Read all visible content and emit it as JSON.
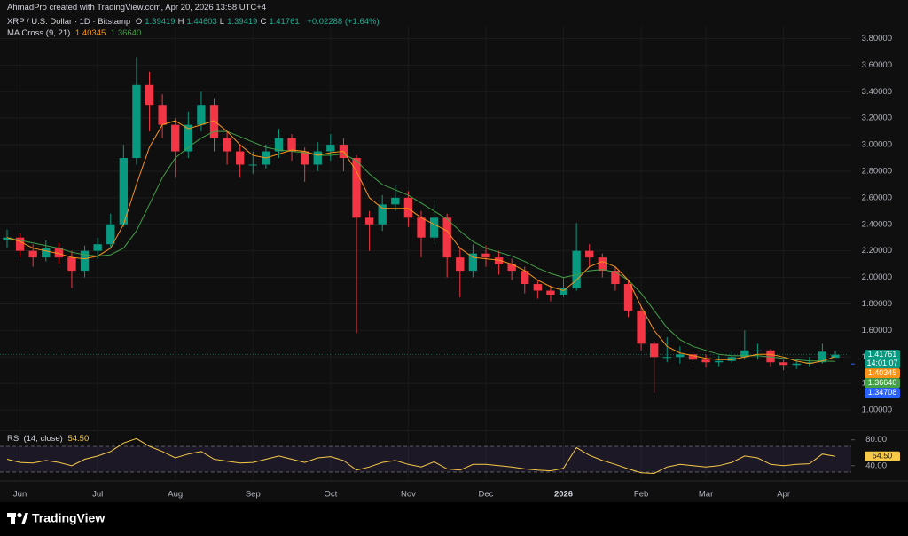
{
  "header": {
    "attribution": "AhmadPro created with TradingView.com, Apr 20, 2026 13:58 UTC+4"
  },
  "footer": {
    "logo": "TradingView"
  },
  "chart_data": {
    "type": "candlestick",
    "title": "XRP / U.S. Dollar · 1D · Bitstamp",
    "ohlc_legend": [
      {
        "label": "O",
        "value": "1.39419"
      },
      {
        "label": "H",
        "value": "1.44603"
      },
      {
        "label": "L",
        "value": "1.39419"
      },
      {
        "label": "C",
        "value": "1.41761"
      }
    ],
    "change": "+0.02288 (+1.64%)",
    "up_color": "#089981",
    "down_color": "#f23645",
    "categories": [
      null,
      "Jun",
      null,
      null,
      null,
      null,
      null,
      "Jul",
      null,
      null,
      null,
      null,
      null,
      "Aug",
      null,
      null,
      null,
      null,
      null,
      "Sep",
      null,
      null,
      null,
      null,
      null,
      "Oct",
      null,
      null,
      null,
      null,
      null,
      "Nov",
      null,
      null,
      null,
      null,
      null,
      "Dec",
      null,
      null,
      null,
      null,
      null,
      "2026",
      null,
      null,
      null,
      null,
      null,
      "Feb",
      null,
      null,
      null,
      null,
      "Mar",
      null,
      null,
      null,
      null,
      null,
      "Apr",
      null,
      null,
      null,
      null
    ],
    "open": [
      2.28,
      2.3,
      2.2,
      2.15,
      2.22,
      2.15,
      2.05,
      2.2,
      2.25,
      2.4,
      2.9,
      3.45,
      3.3,
      3.15,
      2.95,
      3.15,
      3.3,
      3.05,
      2.95,
      2.85,
      2.85,
      2.95,
      3.05,
      2.95,
      2.85,
      2.95,
      3.0,
      2.9,
      2.45,
      2.4,
      2.55,
      2.6,
      2.45,
      2.3,
      2.45,
      2.15,
      2.05,
      2.18,
      2.15,
      2.1,
      2.05,
      1.95,
      1.9,
      1.87,
      1.92,
      2.2,
      2.15,
      2.05,
      1.95,
      1.75,
      1.5,
      1.4,
      1.4,
      1.42,
      1.38,
      1.36,
      1.37,
      1.4,
      1.45,
      1.45,
      1.36,
      1.34,
      1.35,
      1.36,
      1.39419
    ],
    "high": [
      2.36,
      2.33,
      2.25,
      2.28,
      2.26,
      2.2,
      2.24,
      2.3,
      2.48,
      3.0,
      3.66,
      3.55,
      3.38,
      3.2,
      3.25,
      3.4,
      3.35,
      3.1,
      3.0,
      2.95,
      3.0,
      3.12,
      3.08,
      2.98,
      3.02,
      3.08,
      3.05,
      2.92,
      2.5,
      2.62,
      2.7,
      2.65,
      2.5,
      2.58,
      2.48,
      2.22,
      2.25,
      2.24,
      2.2,
      2.14,
      2.08,
      1.98,
      1.94,
      2.0,
      2.41,
      2.25,
      2.18,
      2.08,
      1.98,
      1.78,
      1.52,
      1.55,
      1.48,
      1.45,
      1.42,
      1.41,
      1.44,
      1.6,
      1.5,
      1.46,
      1.38,
      1.38,
      1.4,
      1.5,
      1.44603
    ],
    "low": [
      2.22,
      2.15,
      2.08,
      2.12,
      2.1,
      1.92,
      2.0,
      2.14,
      2.22,
      2.38,
      2.85,
      3.1,
      3.05,
      2.75,
      2.9,
      3.1,
      2.95,
      2.85,
      2.75,
      2.78,
      2.82,
      2.9,
      2.88,
      2.72,
      2.8,
      2.88,
      2.8,
      1.58,
      2.2,
      2.35,
      2.5,
      2.38,
      2.15,
      2.25,
      2.0,
      1.85,
      2.0,
      2.08,
      2.02,
      1.98,
      1.88,
      1.84,
      1.82,
      1.85,
      1.9,
      2.08,
      2.0,
      1.9,
      1.7,
      1.45,
      1.13,
      1.36,
      1.35,
      1.32,
      1.32,
      1.33,
      1.35,
      1.38,
      1.38,
      1.33,
      1.3,
      1.31,
      1.33,
      1.35,
      1.39419
    ],
    "close": [
      2.3,
      2.2,
      2.15,
      2.22,
      2.15,
      2.05,
      2.2,
      2.25,
      2.4,
      2.9,
      3.45,
      3.3,
      3.15,
      2.95,
      3.15,
      3.3,
      3.05,
      2.95,
      2.85,
      2.85,
      2.95,
      3.05,
      2.95,
      2.85,
      2.95,
      3.0,
      2.9,
      2.45,
      2.4,
      2.55,
      2.6,
      2.45,
      2.3,
      2.45,
      2.15,
      2.05,
      2.18,
      2.15,
      2.1,
      2.05,
      1.95,
      1.9,
      1.87,
      1.92,
      2.2,
      2.15,
      2.05,
      1.95,
      1.75,
      1.5,
      1.4,
      1.4,
      1.42,
      1.38,
      1.36,
      1.37,
      1.4,
      1.45,
      1.45,
      1.36,
      1.34,
      1.35,
      1.36,
      1.44,
      1.41761
    ],
    "ylim": [
      0.86,
      3.89
    ],
    "yticks": [
      {
        "value": 1.0,
        "label": "1.00000"
      },
      {
        "value": 1.2,
        "label": "1.20000"
      },
      {
        "value": 1.4,
        "label": "1.40000"
      },
      {
        "value": 1.6,
        "label": "1.60000"
      },
      {
        "value": 1.8,
        "label": "1.80000"
      },
      {
        "value": 2.0,
        "label": "2.00000"
      },
      {
        "value": 2.2,
        "label": "2.20000"
      },
      {
        "value": 2.4,
        "label": "2.40000"
      },
      {
        "value": 2.6,
        "label": "2.60000"
      },
      {
        "value": 2.8,
        "label": "2.80000"
      },
      {
        "value": 3.0,
        "label": "3.00000"
      },
      {
        "value": 3.2,
        "label": "3.20000"
      },
      {
        "value": 3.4,
        "label": "3.40000"
      },
      {
        "value": 3.6,
        "label": "3.60000"
      },
      {
        "value": 3.8,
        "label": "3.80000"
      }
    ],
    "indicator": {
      "title": "MA Cross (9, 21)",
      "fast": {
        "color": "#f7931a",
        "value_label": "1.40345",
        "values": [
          2.3,
          2.27,
          2.22,
          2.2,
          2.18,
          2.15,
          2.14,
          2.16,
          2.22,
          2.4,
          2.7,
          2.98,
          3.15,
          3.18,
          3.12,
          3.15,
          3.18,
          3.1,
          3.0,
          2.92,
          2.9,
          2.93,
          2.96,
          2.95,
          2.92,
          2.94,
          2.95,
          2.8,
          2.6,
          2.52,
          2.52,
          2.52,
          2.45,
          2.4,
          2.35,
          2.22,
          2.15,
          2.14,
          2.13,
          2.1,
          2.05,
          1.98,
          1.93,
          1.9,
          1.98,
          2.08,
          2.12,
          2.08,
          1.98,
          1.78,
          1.6,
          1.48,
          1.43,
          1.41,
          1.39,
          1.38,
          1.38,
          1.4,
          1.42,
          1.42,
          1.4,
          1.37,
          1.35,
          1.37,
          1.40345
        ]
      },
      "slow": {
        "color": "#43a047",
        "value_label": "1.36640",
        "values": [
          2.3,
          2.28,
          2.26,
          2.24,
          2.22,
          2.19,
          2.17,
          2.16,
          2.17,
          2.22,
          2.35,
          2.55,
          2.75,
          2.9,
          2.98,
          3.05,
          3.1,
          3.1,
          3.06,
          3.02,
          2.98,
          2.96,
          2.95,
          2.94,
          2.92,
          2.92,
          2.93,
          2.88,
          2.78,
          2.7,
          2.66,
          2.62,
          2.56,
          2.5,
          2.44,
          2.35,
          2.27,
          2.22,
          2.19,
          2.16,
          2.12,
          2.07,
          2.03,
          2.0,
          2.02,
          2.05,
          2.06,
          2.04,
          1.98,
          1.88,
          1.75,
          1.62,
          1.53,
          1.48,
          1.45,
          1.42,
          1.41,
          1.41,
          1.41,
          1.4,
          1.39,
          1.38,
          1.37,
          1.37,
          1.3664
        ]
      }
    },
    "last_price": {
      "label": "1.41761",
      "countdown": "14:01:07"
    },
    "extra_label": {
      "value": 1.34708,
      "label": "1.34708",
      "color": "#2962ff"
    },
    "rsi": {
      "title": "RSI (14, close)",
      "color": "#f7c948",
      "value_label": "54.50",
      "values": [
        50,
        45,
        44,
        48,
        45,
        40,
        50,
        55,
        62,
        75,
        82,
        70,
        62,
        52,
        58,
        62,
        50,
        47,
        44,
        45,
        50,
        55,
        50,
        45,
        52,
        54,
        48,
        33,
        38,
        45,
        48,
        42,
        38,
        46,
        35,
        33,
        42,
        42,
        40,
        38,
        35,
        33,
        32,
        36,
        68,
        56,
        48,
        42,
        35,
        29,
        28,
        38,
        42,
        40,
        38,
        40,
        45,
        55,
        52,
        42,
        40,
        42,
        43,
        58,
        54.5
      ],
      "ylim": [
        19,
        92
      ],
      "yticks": [
        {
          "value": 80,
          "label": "80.00"
        },
        {
          "value": 40,
          "label": "40.00"
        }
      ],
      "bands": [
        70,
        30
      ]
    }
  }
}
